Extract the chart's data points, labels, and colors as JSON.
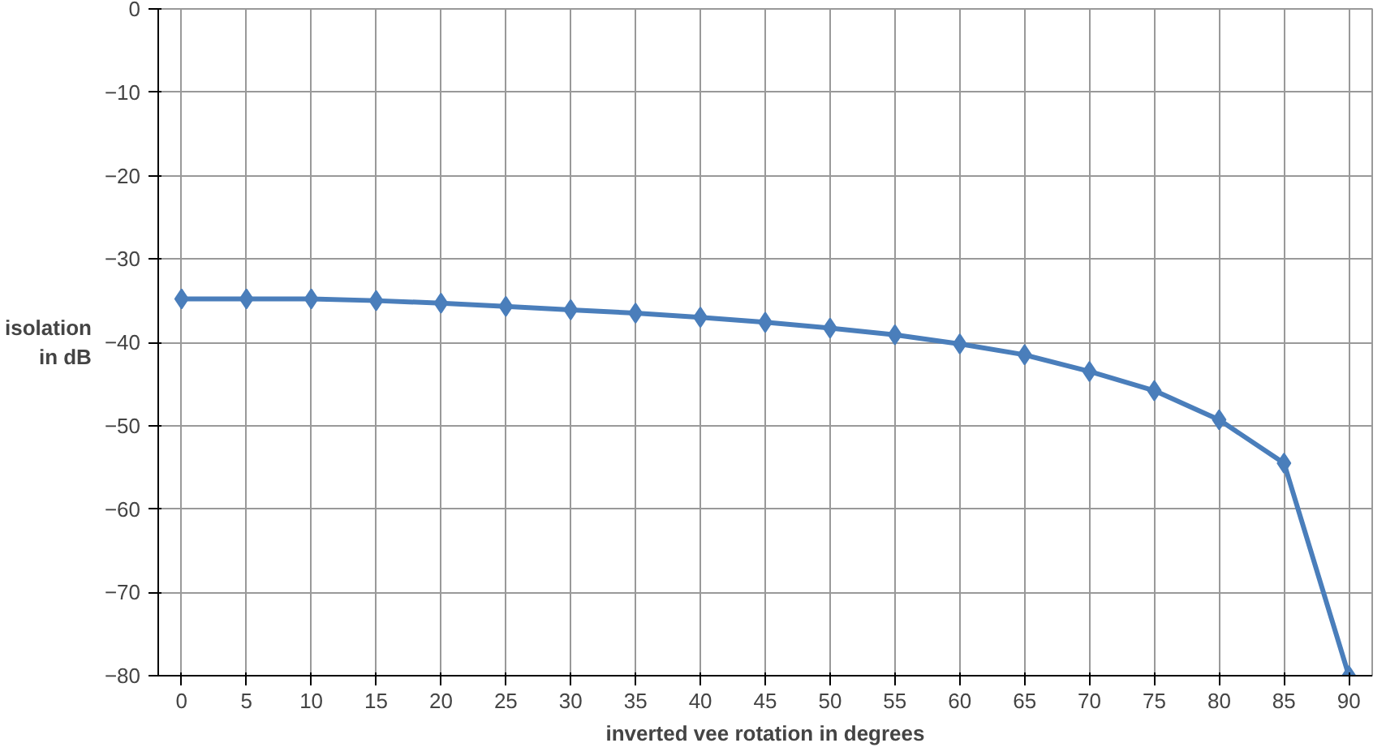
{
  "chart_data": {
    "type": "line",
    "xlabel": "inverted vee rotation in degrees",
    "ylabel": "isolation in dB",
    "x": [
      0,
      5,
      10,
      15,
      20,
      25,
      30,
      35,
      40,
      45,
      50,
      55,
      60,
      65,
      70,
      75,
      80,
      85,
      90
    ],
    "series": [
      {
        "color": "#4a7ebb",
        "values": [
          -34.8,
          -34.8,
          -34.8,
          -35.0,
          -35.3,
          -35.7,
          -36.1,
          -36.5,
          -37.0,
          -37.6,
          -38.3,
          -39.1,
          -40.2,
          -41.5,
          -43.5,
          -45.8,
          -49.3,
          -54.5,
          -80
        ]
      }
    ],
    "xlim": [
      0,
      90
    ],
    "ylim": [
      -80,
      0
    ],
    "xticks": [
      0,
      5,
      10,
      15,
      20,
      25,
      30,
      35,
      40,
      45,
      50,
      55,
      60,
      65,
      70,
      75,
      80,
      85,
      90
    ],
    "yticks": [
      0,
      -10,
      -20,
      -30,
      -40,
      -50,
      -60,
      -70,
      -80
    ],
    "grid": true,
    "marker": "diamond",
    "line_style": "solid"
  }
}
